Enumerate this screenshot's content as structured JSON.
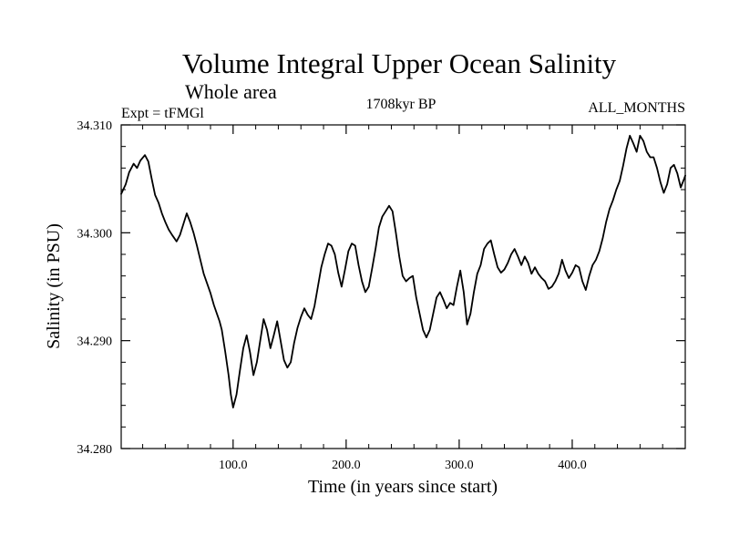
{
  "chart_data": {
    "type": "line",
    "title": "Volume Integral Upper Ocean Salinity",
    "subtitle": "Whole area",
    "experiment": "Expt = tFMGl",
    "period": "1708kyr BP",
    "months": "ALL_MONTHS",
    "xlabel": "Time (in years since start)",
    "ylabel": "Salinity (in PSU)",
    "xlim": [
      1,
      500
    ],
    "ylim": [
      34.28,
      34.31
    ],
    "x_ticks": [
      100,
      200,
      300,
      400
    ],
    "x_tick_labels": [
      "100.0",
      "200.0",
      "300.0",
      "400.0"
    ],
    "y_ticks": [
      34.28,
      34.29,
      34.3,
      34.31
    ],
    "y_tick_labels": [
      "34.280",
      "34.290",
      "34.300",
      "34.310"
    ],
    "x_minor_step": 20,
    "y_minor_step": 0.002,
    "series": [
      {
        "name": "Salinity",
        "color": "#000000",
        "points": [
          [
            1,
            34.3036
          ],
          [
            5,
            34.3045
          ],
          [
            8,
            34.3056
          ],
          [
            12,
            34.3064
          ],
          [
            15,
            34.306
          ],
          [
            18,
            34.3067
          ],
          [
            22,
            34.3072
          ],
          [
            25,
            34.3066
          ],
          [
            28,
            34.305
          ],
          [
            31,
            34.3035
          ],
          [
            34,
            34.3028
          ],
          [
            37,
            34.3018
          ],
          [
            40,
            34.301
          ],
          [
            43,
            34.3003
          ],
          [
            46,
            34.2998
          ],
          [
            50,
            34.2992
          ],
          [
            53,
            34.2998
          ],
          [
            56,
            34.3008
          ],
          [
            59,
            34.3018
          ],
          [
            62,
            34.301
          ],
          [
            65,
            34.3
          ],
          [
            68,
            34.2988
          ],
          [
            71,
            34.2975
          ],
          [
            74,
            34.2962
          ],
          [
            77,
            34.2953
          ],
          [
            80,
            34.2944
          ],
          [
            83,
            34.2933
          ],
          [
            86,
            34.2924
          ],
          [
            88,
            34.2918
          ],
          [
            90,
            34.291
          ],
          [
            93,
            34.289
          ],
          [
            96,
            34.2868
          ],
          [
            98,
            34.285
          ],
          [
            100,
            34.2838
          ],
          [
            103,
            34.285
          ],
          [
            106,
            34.2872
          ],
          [
            109,
            34.2893
          ],
          [
            112,
            34.2905
          ],
          [
            115,
            34.2889
          ],
          [
            118,
            34.2868
          ],
          [
            121,
            34.288
          ],
          [
            124,
            34.29
          ],
          [
            127,
            34.292
          ],
          [
            130,
            34.291
          ],
          [
            133,
            34.2893
          ],
          [
            136,
            34.2905
          ],
          [
            139,
            34.2918
          ],
          [
            142,
            34.29
          ],
          [
            145,
            34.2882
          ],
          [
            148,
            34.2875
          ],
          [
            151,
            34.288
          ],
          [
            154,
            34.2898
          ],
          [
            157,
            34.2912
          ],
          [
            160,
            34.2922
          ],
          [
            163,
            34.293
          ],
          [
            166,
            34.2924
          ],
          [
            169,
            34.292
          ],
          [
            172,
            34.2932
          ],
          [
            175,
            34.295
          ],
          [
            178,
            34.2968
          ],
          [
            181,
            34.298
          ],
          [
            184,
            34.299
          ],
          [
            187,
            34.2988
          ],
          [
            190,
            34.298
          ],
          [
            193,
            34.2963
          ],
          [
            196,
            34.295
          ],
          [
            199,
            34.2966
          ],
          [
            202,
            34.2983
          ],
          [
            205,
            34.299
          ],
          [
            208,
            34.2988
          ],
          [
            211,
            34.297
          ],
          [
            214,
            34.2955
          ],
          [
            217,
            34.2945
          ],
          [
            220,
            34.295
          ],
          [
            223,
            34.2967
          ],
          [
            226,
            34.2985
          ],
          [
            229,
            34.3005
          ],
          [
            232,
            34.3015
          ],
          [
            235,
            34.302
          ],
          [
            238,
            34.3025
          ],
          [
            241,
            34.302
          ],
          [
            244,
            34.3
          ],
          [
            247,
            34.2978
          ],
          [
            250,
            34.296
          ],
          [
            253,
            34.2955
          ],
          [
            256,
            34.2958
          ],
          [
            259,
            34.296
          ],
          [
            262,
            34.294
          ],
          [
            265,
            34.2925
          ],
          [
            268,
            34.291
          ],
          [
            271,
            34.2903
          ],
          [
            274,
            34.291
          ],
          [
            277,
            34.2925
          ],
          [
            280,
            34.294
          ],
          [
            283,
            34.2945
          ],
          [
            286,
            34.2938
          ],
          [
            289,
            34.293
          ],
          [
            292,
            34.2935
          ],
          [
            295,
            34.2933
          ],
          [
            298,
            34.295
          ],
          [
            301,
            34.2965
          ],
          [
            304,
            34.2945
          ],
          [
            307,
            34.2915
          ],
          [
            310,
            34.2925
          ],
          [
            313,
            34.2945
          ],
          [
            316,
            34.2962
          ],
          [
            319,
            34.297
          ],
          [
            322,
            34.2985
          ],
          [
            325,
            34.299
          ],
          [
            328,
            34.2993
          ],
          [
            331,
            34.298
          ],
          [
            334,
            34.2968
          ],
          [
            337,
            34.2963
          ],
          [
            340,
            34.2966
          ],
          [
            343,
            34.2972
          ],
          [
            346,
            34.298
          ],
          [
            349,
            34.2985
          ],
          [
            352,
            34.2978
          ],
          [
            355,
            34.297
          ],
          [
            358,
            34.2978
          ],
          [
            361,
            34.2972
          ],
          [
            364,
            34.2962
          ],
          [
            367,
            34.2968
          ],
          [
            370,
            34.2962
          ],
          [
            373,
            34.2958
          ],
          [
            376,
            34.2955
          ],
          [
            379,
            34.2948
          ],
          [
            382,
            34.295
          ],
          [
            385,
            34.2955
          ],
          [
            388,
            34.2962
          ],
          [
            391,
            34.2975
          ],
          [
            394,
            34.2965
          ],
          [
            397,
            34.2958
          ],
          [
            400,
            34.2963
          ],
          [
            403,
            34.297
          ],
          [
            406,
            34.2968
          ],
          [
            409,
            34.2955
          ],
          [
            412,
            34.2947
          ],
          [
            415,
            34.296
          ],
          [
            418,
            34.297
          ],
          [
            421,
            34.2975
          ],
          [
            424,
            34.2983
          ],
          [
            427,
            34.2995
          ],
          [
            430,
            34.301
          ],
          [
            433,
            34.3022
          ],
          [
            436,
            34.303
          ],
          [
            439,
            34.304
          ],
          [
            442,
            34.3048
          ],
          [
            445,
            34.3062
          ],
          [
            448,
            34.3078
          ],
          [
            451,
            34.309
          ],
          [
            454,
            34.3083
          ],
          [
            457,
            34.3075
          ],
          [
            460,
            34.309
          ],
          [
            463,
            34.3085
          ],
          [
            466,
            34.3075
          ],
          [
            469,
            34.307
          ],
          [
            472,
            34.307
          ],
          [
            475,
            34.306
          ],
          [
            478,
            34.3047
          ],
          [
            481,
            34.3037
          ],
          [
            484,
            34.3045
          ],
          [
            487,
            34.306
          ],
          [
            490,
            34.3063
          ],
          [
            493,
            34.3055
          ],
          [
            496,
            34.3042
          ],
          [
            499,
            34.305
          ],
          [
            500,
            34.3053
          ]
        ]
      }
    ]
  }
}
